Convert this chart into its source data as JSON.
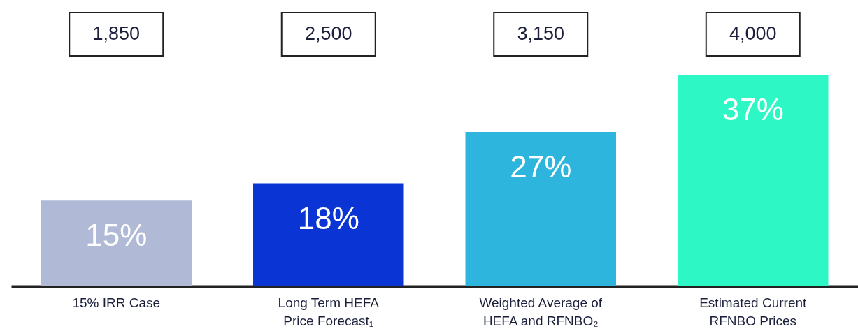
{
  "chart_data": {
    "type": "bar",
    "categories": [
      "15% IRR Case",
      "Long Term HEFA Price Forecast₁",
      "Weighted Average of HEFA and RFNBO₂",
      "Estimated Current RFNBO Prices"
    ],
    "values": [
      15,
      18,
      27,
      37
    ],
    "colors": [
      "#b0bad6",
      "#0a35d4",
      "#2db5dd",
      "#2ef7c6"
    ],
    "data_labels": true,
    "value_labels": [
      "15%",
      "18%",
      "27%",
      "37%"
    ],
    "annotations": [
      "1,850",
      "2,500",
      "3,150",
      "4,000"
    ]
  }
}
